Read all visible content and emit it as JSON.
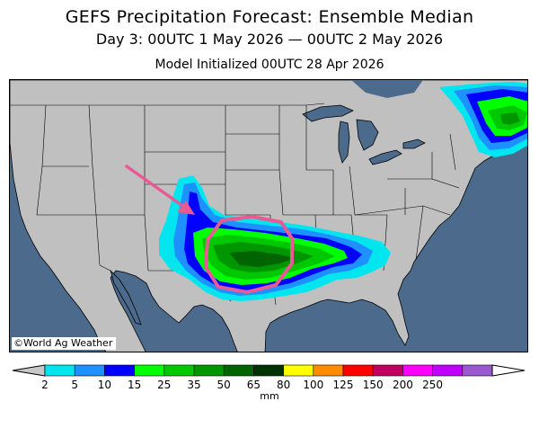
{
  "header": {
    "title": "GEFS Precipitation Forecast: Ensemble Median",
    "period": "Day 3: 00UTC 1 May 2026 — 00UTC 2 May 2026",
    "init": "Model Initialized 00UTC 28 Apr 2026"
  },
  "map": {
    "credit": "©World Ag Weather",
    "colors": {
      "land": "#c0c0c0",
      "water": "#4c6a8c",
      "annotation": "#e85a94"
    },
    "icons": [
      "annotation-arrow-icon",
      "annotation-circle-icon"
    ]
  },
  "legend": {
    "unit": "mm",
    "bins": [
      {
        "color": "#00e5ee"
      },
      {
        "color": "#1e90ff"
      },
      {
        "color": "#0000ff"
      },
      {
        "color": "#00ff00"
      },
      {
        "color": "#00c800"
      },
      {
        "color": "#009600"
      },
      {
        "color": "#006400"
      },
      {
        "color": "#003200"
      },
      {
        "color": "#ffff00"
      },
      {
        "color": "#ff8c00"
      },
      {
        "color": "#ff0000"
      },
      {
        "color": "#c00060"
      },
      {
        "color": "#ff00ff"
      },
      {
        "color": "#c000ff"
      },
      {
        "color": "#9b59d0"
      }
    ],
    "below_color": "#c8c8c8",
    "above_color": "#ffffff",
    "labels": [
      "2",
      "5",
      "10",
      "15",
      "25",
      "35",
      "50",
      "65",
      "80",
      "100",
      "125",
      "150",
      "200",
      "250"
    ]
  }
}
